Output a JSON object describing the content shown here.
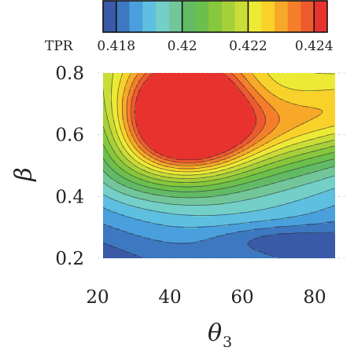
{
  "chart_data": {
    "type": "heatmap",
    "plot_style": "filled-contour",
    "xlabel": "θ",
    "xlabel_subscript": "3",
    "ylabel": "β",
    "xlim": [
      25,
      85
    ],
    "ylim": [
      0.2,
      0.8
    ],
    "x_ticks": [
      "20",
      "40",
      "60",
      "80"
    ],
    "x_tick_values": [
      20,
      40,
      60,
      80
    ],
    "y_ticks": [
      "0.2",
      "0.4",
      "0.6",
      "0.8"
    ],
    "y_tick_values": [
      0.2,
      0.4,
      0.6,
      0.8
    ],
    "grid": "dashed, light",
    "colorbar": {
      "title": "TPR",
      "placement": "top",
      "min": 0.4176,
      "max": 0.4244,
      "tick_labels": [
        "0.418",
        "0.42",
        "0.422",
        "0.424"
      ],
      "tick_values": [
        0.418,
        0.42,
        0.422,
        0.424
      ],
      "contour_levels": [
        0.4176,
        0.418,
        0.4184,
        0.4188,
        0.4192,
        0.4196,
        0.42,
        0.4204,
        0.4208,
        0.4212,
        0.4216,
        0.422,
        0.4224,
        0.4228,
        0.4232,
        0.4236,
        0.424,
        0.4244
      ],
      "colors": [
        "#3a5aa8",
        "#3d78c0",
        "#4aa0dc",
        "#5ebfe0",
        "#73cfc8",
        "#72c69a",
        "#62ba66",
        "#6cbf4c",
        "#86c73d",
        "#a6d03a",
        "#c9dc38",
        "#ecea35",
        "#f8d22a",
        "#f7a828",
        "#f47e2a",
        "#ee5a30",
        "#e8322e"
      ]
    },
    "tpr_peak": {
      "theta3": 46,
      "beta": 0.67,
      "tpr": 0.4243
    }
  }
}
